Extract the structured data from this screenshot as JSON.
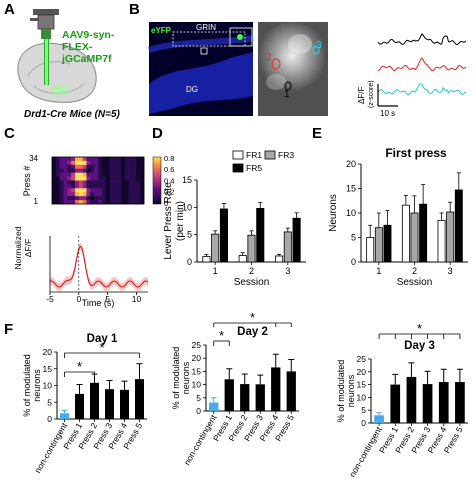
{
  "panels": {
    "a": "A",
    "b": "B",
    "c": "C",
    "d": "D",
    "e": "E",
    "f": "F"
  },
  "panel_a": {
    "virus": [
      "AAV9-syn-",
      "FLEX-",
      "jGCaMP7f"
    ],
    "mice": "Drd1-Cre Mice (N=5)"
  },
  "panel_b": {
    "eyfp": "eYFP",
    "grin": "GRIN",
    "dg": "DG",
    "cells": [
      "2",
      "3",
      "1"
    ],
    "ylabel": "ΔF/F",
    "ylabel2": "(z-score)",
    "scale": "10 s"
  },
  "colors": {
    "fr1": "#ffffff",
    "fr3": "#a8a8a8",
    "fr5": "#000000",
    "noncontingent": "#4aa8e8",
    "press": "#000000",
    "trace1": "#000000",
    "trace2": "#e02020",
    "trace3": "#20c8d8",
    "mean_trace": "#d02020"
  },
  "chart_data": [
    {
      "id": "C",
      "type": "heatmap",
      "ylabel": "Press #",
      "y_ticks": [
        "34",
        "1"
      ],
      "colorbar_ticks": [
        "0.8",
        "0.6",
        "0.4",
        "0.2",
        "0"
      ],
      "trace_ylabel": [
        "Normalized",
        "ΔF/F"
      ],
      "x_ticks": [
        -5,
        0,
        5,
        10
      ],
      "xlabel": "Time (s)"
    },
    {
      "id": "D",
      "type": "bar",
      "ylabel": "Lever Press Rate (per min)",
      "xlabel": "Session",
      "categories": [
        "1",
        "2",
        "3"
      ],
      "ylim": [
        0,
        15
      ],
      "yticks": [
        0,
        5,
        10,
        15
      ],
      "series": [
        {
          "name": "FR1",
          "values": [
            1.0,
            1.2,
            1.1
          ],
          "errors": [
            0.4,
            0.5,
            0.3
          ]
        },
        {
          "name": "FR3",
          "values": [
            5.1,
            4.9,
            5.5
          ],
          "errors": [
            0.6,
            0.8,
            0.7
          ]
        },
        {
          "name": "FR5",
          "values": [
            9.7,
            9.8,
            8.0
          ],
          "errors": [
            1.0,
            1.1,
            1.0
          ]
        }
      ]
    },
    {
      "id": "E",
      "type": "bar",
      "title": "First press",
      "ylabel": "Neurons",
      "xlabel": "Session",
      "categories": [
        "1",
        "2",
        "3"
      ],
      "ylim": [
        0,
        20
      ],
      "yticks": [
        0,
        5,
        10,
        15,
        20
      ],
      "series": [
        {
          "name": "FR1",
          "values": [
            5.0,
            11.6,
            8.5
          ],
          "errors": [
            2.5,
            2.0,
            1.5
          ]
        },
        {
          "name": "FR3",
          "values": [
            7.0,
            10.0,
            10.2
          ],
          "errors": [
            3.0,
            3.5,
            2.0
          ]
        },
        {
          "name": "FR5",
          "values": [
            7.5,
            11.8,
            14.7
          ],
          "errors": [
            3.0,
            4.0,
            3.5
          ]
        }
      ]
    },
    {
      "id": "F1",
      "type": "bar",
      "title": "Day 1",
      "ylabel": [
        "% of modulated",
        "neurons"
      ],
      "categories": [
        "non-contingent",
        "Press 1",
        "Press 2",
        "Press 3",
        "Press 4",
        "Press 5"
      ],
      "values": [
        1.7,
        7.5,
        10.8,
        8.9,
        8.7,
        11.9
      ],
      "errors": [
        0.9,
        2.8,
        2.6,
        2.6,
        2.6,
        4.6
      ],
      "ylim": [
        0,
        20
      ],
      "yticks": [
        0,
        5,
        10,
        15,
        20
      ],
      "sig": [
        "*",
        "*"
      ]
    },
    {
      "id": "F2",
      "type": "bar",
      "title": "Day 2",
      "ylabel": [
        "% of modulated",
        "neurons"
      ],
      "categories": [
        "non-contingent",
        "Press 1",
        "Press 2",
        "Press 3",
        "Press 4",
        "Press 5"
      ],
      "values": [
        3.2,
        12.0,
        10.2,
        10.1,
        16.5,
        15.0
      ],
      "errors": [
        1.8,
        4.0,
        3.8,
        3.5,
        5.0,
        4.5
      ],
      "ylim": [
        0,
        25
      ],
      "yticks": [
        0,
        5,
        10,
        15,
        20,
        25
      ],
      "sig": [
        "*",
        "*"
      ]
    },
    {
      "id": "F3",
      "type": "bar",
      "title": "Day 3",
      "ylabel": [
        "% of modulated",
        "neurons"
      ],
      "categories": [
        "non-contingent",
        "Press 1",
        "Press 2",
        "Press 3",
        "Press 4",
        "Press 5"
      ],
      "values": [
        3.0,
        15.0,
        18.0,
        15.2,
        16.0,
        16.0
      ],
      "errors": [
        1.0,
        4.0,
        5.5,
        5.0,
        5.0,
        5.0
      ],
      "ylim": [
        0,
        25
      ],
      "yticks": [
        0,
        5,
        10,
        15,
        20,
        25
      ],
      "sig": [
        "*"
      ]
    }
  ]
}
